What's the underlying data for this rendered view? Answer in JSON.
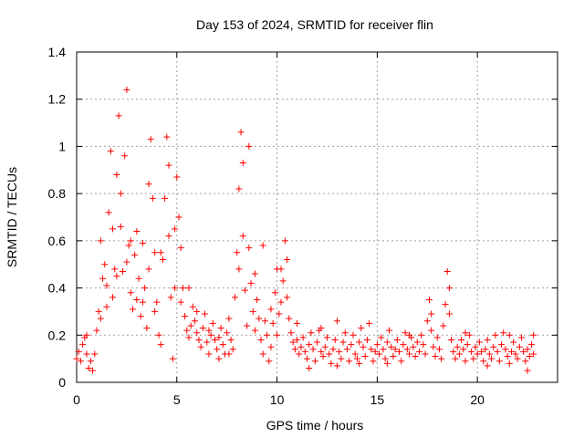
{
  "chart_data": {
    "type": "scatter",
    "title": "Day 153 of 2024, SRMTID for receiver flin",
    "xlabel": "GPS time / hours",
    "ylabel": "SRMTID / TECUs",
    "xlim": [
      0,
      24
    ],
    "ylim": [
      0,
      1.4
    ],
    "xticks": [
      0,
      5,
      10,
      15,
      20
    ],
    "xtick_labels": [
      "0",
      "5",
      "10",
      "15",
      "20"
    ],
    "yticks": [
      0,
      0.2,
      0.4,
      0.6,
      0.8,
      1,
      1.2,
      1.4
    ],
    "ytick_labels": [
      "0",
      "0.2",
      "0.4",
      "0.6",
      "0.8",
      "1",
      "1.2",
      "1.4"
    ],
    "grid": true,
    "marker": "plus",
    "color": "#ff0000",
    "series": [
      {
        "name": "SRMTID",
        "points": [
          [
            0.0,
            0.1
          ],
          [
            0.1,
            0.13
          ],
          [
            0.2,
            0.09
          ],
          [
            0.3,
            0.16
          ],
          [
            0.4,
            0.19
          ],
          [
            0.5,
            0.12
          ],
          [
            0.6,
            0.06
          ],
          [
            0.7,
            0.09
          ],
          [
            0.8,
            0.05
          ],
          [
            0.9,
            0.12
          ],
          [
            1.0,
            0.22
          ],
          [
            1.1,
            0.3
          ],
          [
            1.2,
            0.27
          ],
          [
            1.3,
            0.44
          ],
          [
            1.4,
            0.5
          ],
          [
            1.5,
            0.41
          ],
          [
            1.6,
            0.72
          ],
          [
            1.7,
            0.98
          ],
          [
            1.8,
            0.65
          ],
          [
            1.9,
            0.48
          ],
          [
            2.0,
            0.88
          ],
          [
            2.1,
            1.13
          ],
          [
            2.2,
            0.66
          ],
          [
            2.3,
            0.47
          ],
          [
            2.4,
            0.96
          ],
          [
            2.5,
            1.24
          ],
          [
            2.6,
            0.58
          ],
          [
            2.7,
            0.38
          ],
          [
            2.8,
            0.31
          ],
          [
            2.9,
            0.54
          ],
          [
            3.0,
            0.64
          ],
          [
            3.1,
            0.44
          ],
          [
            3.2,
            0.28
          ],
          [
            3.3,
            0.59
          ],
          [
            3.4,
            0.4
          ],
          [
            3.5,
            0.23
          ],
          [
            3.6,
            0.48
          ],
          [
            3.7,
            1.03
          ],
          [
            3.8,
            0.78
          ],
          [
            3.9,
            0.55
          ],
          [
            4.0,
            0.34
          ],
          [
            4.1,
            0.2
          ],
          [
            4.2,
            0.16
          ],
          [
            4.3,
            0.52
          ],
          [
            4.4,
            0.78
          ],
          [
            4.5,
            1.04
          ],
          [
            4.6,
            0.62
          ],
          [
            4.7,
            0.36
          ],
          [
            4.8,
            0.1
          ],
          [
            4.9,
            0.65
          ],
          [
            5.0,
            0.87
          ],
          [
            5.1,
            0.7
          ],
          [
            5.2,
            0.57
          ],
          [
            5.3,
            0.4
          ],
          [
            5.4,
            0.28
          ],
          [
            5.5,
            0.22
          ],
          [
            5.6,
            0.19
          ],
          [
            5.7,
            0.24
          ],
          [
            5.8,
            0.32
          ],
          [
            5.9,
            0.26
          ],
          [
            6.0,
            0.21
          ],
          [
            6.1,
            0.18
          ],
          [
            6.2,
            0.15
          ],
          [
            6.3,
            0.23
          ],
          [
            6.4,
            0.29
          ],
          [
            6.5,
            0.17
          ],
          [
            6.6,
            0.12
          ],
          [
            6.7,
            0.2
          ],
          [
            6.8,
            0.25
          ],
          [
            6.9,
            0.18
          ],
          [
            7.0,
            0.14
          ],
          [
            7.1,
            0.19
          ],
          [
            7.2,
            0.23
          ],
          [
            7.3,
            0.16
          ],
          [
            7.4,
            0.12
          ],
          [
            7.5,
            0.21
          ],
          [
            7.6,
            0.27
          ],
          [
            7.7,
            0.18
          ],
          [
            7.8,
            0.14
          ],
          [
            7.9,
            0.36
          ],
          [
            8.0,
            0.55
          ],
          [
            8.1,
            0.82
          ],
          [
            8.2,
            1.06
          ],
          [
            8.3,
            0.62
          ],
          [
            8.4,
            0.39
          ],
          [
            8.5,
            0.24
          ],
          [
            8.6,
            1.0
          ],
          [
            8.7,
            0.42
          ],
          [
            8.8,
            0.3
          ],
          [
            8.9,
            0.22
          ],
          [
            9.0,
            0.35
          ],
          [
            9.1,
            0.27
          ],
          [
            9.2,
            0.18
          ],
          [
            9.3,
            0.12
          ],
          [
            9.4,
            0.26
          ],
          [
            9.5,
            0.2
          ],
          [
            9.6,
            0.09
          ],
          [
            9.7,
            0.31
          ],
          [
            9.8,
            0.25
          ],
          [
            9.9,
            0.38
          ],
          [
            10.0,
            0.48
          ],
          [
            10.1,
            0.29
          ],
          [
            10.2,
            0.34
          ],
          [
            10.3,
            0.43
          ],
          [
            10.4,
            0.6
          ],
          [
            10.5,
            0.36
          ],
          [
            10.6,
            0.27
          ],
          [
            10.7,
            0.21
          ],
          [
            10.8,
            0.17
          ],
          [
            10.9,
            0.14
          ],
          [
            11.0,
            0.18
          ],
          [
            11.1,
            0.12
          ],
          [
            11.2,
            0.15
          ],
          [
            11.3,
            0.19
          ],
          [
            11.4,
            0.13
          ],
          [
            11.5,
            0.1
          ],
          [
            11.6,
            0.16
          ],
          [
            11.7,
            0.21
          ],
          [
            11.8,
            0.14
          ],
          [
            11.9,
            0.09
          ],
          [
            12.0,
            0.17
          ],
          [
            12.1,
            0.22
          ],
          [
            12.2,
            0.13
          ],
          [
            12.3,
            0.11
          ],
          [
            12.4,
            0.15
          ],
          [
            12.5,
            0.19
          ],
          [
            12.6,
            0.12
          ],
          [
            12.7,
            0.08
          ],
          [
            12.8,
            0.14
          ],
          [
            12.9,
            0.18
          ],
          [
            13.0,
            0.26
          ],
          [
            13.1,
            0.13
          ],
          [
            13.2,
            0.1
          ],
          [
            13.3,
            0.17
          ],
          [
            13.4,
            0.21
          ],
          [
            13.5,
            0.14
          ],
          [
            13.6,
            0.09
          ],
          [
            13.7,
            0.16
          ],
          [
            13.8,
            0.2
          ],
          [
            13.9,
            0.12
          ],
          [
            14.0,
            0.1
          ],
          [
            14.1,
            0.17
          ],
          [
            14.2,
            0.23
          ],
          [
            14.3,
            0.15
          ],
          [
            14.4,
            0.11
          ],
          [
            14.5,
            0.18
          ],
          [
            14.6,
            0.25
          ],
          [
            14.7,
            0.14
          ],
          [
            14.8,
            0.09
          ],
          [
            14.9,
            0.13
          ],
          [
            15.0,
            0.16
          ],
          [
            15.1,
            0.12
          ],
          [
            15.2,
            0.19
          ],
          [
            15.3,
            0.14
          ],
          [
            15.4,
            0.1
          ],
          [
            15.5,
            0.17
          ],
          [
            15.6,
            0.22
          ],
          [
            15.7,
            0.15
          ],
          [
            15.8,
            0.11
          ],
          [
            15.9,
            0.14
          ],
          [
            16.0,
            0.18
          ],
          [
            16.1,
            0.13
          ],
          [
            16.2,
            0.09
          ],
          [
            16.3,
            0.16
          ],
          [
            16.4,
            0.21
          ],
          [
            16.5,
            0.14
          ],
          [
            16.6,
            0.12
          ],
          [
            16.7,
            0.19
          ],
          [
            16.8,
            0.15
          ],
          [
            16.9,
            0.11
          ],
          [
            17.0,
            0.17
          ],
          [
            17.1,
            0.13
          ],
          [
            17.2,
            0.2
          ],
          [
            17.3,
            0.16
          ],
          [
            17.4,
            0.12
          ],
          [
            17.5,
            0.26
          ],
          [
            17.6,
            0.35
          ],
          [
            17.7,
            0.22
          ],
          [
            17.8,
            0.15
          ],
          [
            17.9,
            0.11
          ],
          [
            18.0,
            0.19
          ],
          [
            18.1,
            0.14
          ],
          [
            18.2,
            0.1
          ],
          [
            18.3,
            0.24
          ],
          [
            18.4,
            0.33
          ],
          [
            18.5,
            0.47
          ],
          [
            18.6,
            0.29
          ],
          [
            18.7,
            0.18
          ],
          [
            18.8,
            0.13
          ],
          [
            18.9,
            0.1
          ],
          [
            19.0,
            0.15
          ],
          [
            19.1,
            0.12
          ],
          [
            19.2,
            0.18
          ],
          [
            19.3,
            0.14
          ],
          [
            19.4,
            0.09
          ],
          [
            19.5,
            0.16
          ],
          [
            19.6,
            0.2
          ],
          [
            19.7,
            0.13
          ],
          [
            19.8,
            0.1
          ],
          [
            19.9,
            0.15
          ],
          [
            20.0,
            0.12
          ],
          [
            20.1,
            0.17
          ],
          [
            20.2,
            0.13
          ],
          [
            20.3,
            0.09
          ],
          [
            20.4,
            0.14
          ],
          [
            20.5,
            0.18
          ],
          [
            20.6,
            0.12
          ],
          [
            20.7,
            0.1
          ],
          [
            20.8,
            0.15
          ],
          [
            20.9,
            0.2
          ],
          [
            21.0,
            0.13
          ],
          [
            21.1,
            0.09
          ],
          [
            21.2,
            0.16
          ],
          [
            21.3,
            0.21
          ],
          [
            21.4,
            0.14
          ],
          [
            21.5,
            0.11
          ],
          [
            21.6,
            0.08
          ],
          [
            21.7,
            0.13
          ],
          [
            21.8,
            0.17
          ],
          [
            21.9,
            0.12
          ],
          [
            22.0,
            0.1
          ],
          [
            22.1,
            0.15
          ],
          [
            22.2,
            0.19
          ],
          [
            22.3,
            0.13
          ],
          [
            22.4,
            0.09
          ],
          [
            22.5,
            0.14
          ],
          [
            22.6,
            0.11
          ],
          [
            22.7,
            0.16
          ],
          [
            22.8,
            0.12
          ],
          [
            0.5,
            0.2
          ],
          [
            1.2,
            0.6
          ],
          [
            1.5,
            0.32
          ],
          [
            1.8,
            0.36
          ],
          [
            2.0,
            0.45
          ],
          [
            2.2,
            0.8
          ],
          [
            2.5,
            0.51
          ],
          [
            2.7,
            0.6
          ],
          [
            3.0,
            0.35
          ],
          [
            3.3,
            0.34
          ],
          [
            3.6,
            0.84
          ],
          [
            3.9,
            0.3
          ],
          [
            4.2,
            0.55
          ],
          [
            4.6,
            0.92
          ],
          [
            4.9,
            0.4
          ],
          [
            5.2,
            0.34
          ],
          [
            5.6,
            0.4
          ],
          [
            6.0,
            0.3
          ],
          [
            6.6,
            0.22
          ],
          [
            7.1,
            0.1
          ],
          [
            7.6,
            0.12
          ],
          [
            8.1,
            0.48
          ],
          [
            8.3,
            0.93
          ],
          [
            8.6,
            0.57
          ],
          [
            8.9,
            0.46
          ],
          [
            9.3,
            0.58
          ],
          [
            9.7,
            0.15
          ],
          [
            10.0,
            0.2
          ],
          [
            10.2,
            0.48
          ],
          [
            10.5,
            0.52
          ],
          [
            11.0,
            0.25
          ],
          [
            11.6,
            0.06
          ],
          [
            12.2,
            0.23
          ],
          [
            13.0,
            0.07
          ],
          [
            14.1,
            0.08
          ],
          [
            15.5,
            0.08
          ],
          [
            16.6,
            0.2
          ],
          [
            17.7,
            0.29
          ],
          [
            18.6,
            0.4
          ],
          [
            19.4,
            0.21
          ],
          [
            20.5,
            0.07
          ],
          [
            21.6,
            0.2
          ],
          [
            22.5,
            0.05
          ],
          [
            22.8,
            0.2
          ]
        ]
      }
    ]
  }
}
